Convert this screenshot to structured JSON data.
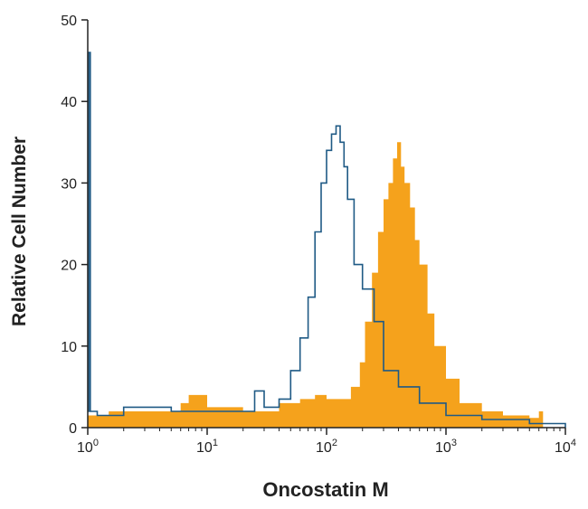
{
  "chart_data": {
    "type": "area",
    "title": "",
    "xlabel": "Oncostatin M",
    "ylabel": "Relative Cell Number",
    "x_scale": "log",
    "xlim": [
      1,
      10000
    ],
    "ylim": [
      0,
      50
    ],
    "x_ticks": [
      {
        "value": 1,
        "base": "10",
        "exp": "0"
      },
      {
        "value": 10,
        "base": "10",
        "exp": "1"
      },
      {
        "value": 100,
        "base": "10",
        "exp": "2"
      },
      {
        "value": 1000,
        "base": "10",
        "exp": "3"
      },
      {
        "value": 10000,
        "base": "10",
        "exp": "4"
      }
    ],
    "y_ticks": [
      0,
      10,
      20,
      30,
      40,
      50
    ],
    "grid": false,
    "legend": "none",
    "series": [
      {
        "style": "filled histogram",
        "color": "#f5a21c",
        "x": [
          1,
          1.5,
          3,
          6,
          7,
          10,
          20,
          40,
          60,
          80,
          100,
          130,
          160,
          190,
          210,
          240,
          270,
          300,
          330,
          360,
          390,
          420,
          450,
          500,
          550,
          600,
          700,
          800,
          1000,
          1300,
          2000,
          3000,
          5000,
          6000,
          6500
        ],
        "y": [
          1.5,
          2,
          2,
          3,
          4,
          2.5,
          2,
          3,
          3.5,
          4,
          3.5,
          3.5,
          5,
          8,
          13,
          19,
          24,
          28,
          30,
          33,
          35,
          32,
          30,
          27,
          23,
          20,
          14,
          10,
          6,
          3,
          2,
          1.5,
          1.2,
          2,
          0
        ]
      },
      {
        "style": "outline histogram",
        "color": "#1f5a85",
        "x": [
          1,
          1.02,
          1.05,
          1.2,
          2,
          5,
          10,
          20,
          25,
          30,
          40,
          50,
          60,
          70,
          80,
          90,
          100,
          110,
          120,
          130,
          140,
          150,
          170,
          200,
          250,
          300,
          400,
          600,
          1000,
          2000,
          5000,
          10000
        ],
        "y": [
          2,
          46,
          2,
          1.5,
          2.5,
          2,
          2,
          2,
          4.5,
          2.5,
          3.5,
          7,
          11,
          16,
          24,
          30,
          34,
          36,
          37,
          35,
          32,
          28,
          20,
          17,
          13,
          7,
          5,
          3,
          1.5,
          1,
          0.5,
          0
        ]
      }
    ]
  }
}
